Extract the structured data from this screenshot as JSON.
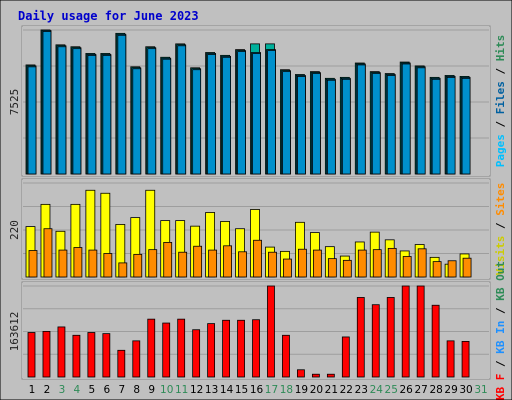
{
  "chart_data": {
    "type": "bar",
    "title": "Daily usage for June 2023",
    "categories": [
      "1",
      "2",
      "3",
      "4",
      "5",
      "6",
      "7",
      "8",
      "9",
      "10",
      "11",
      "12",
      "13",
      "14",
      "15",
      "16",
      "17",
      "18",
      "19",
      "20",
      "21",
      "22",
      "23",
      "24",
      "25",
      "26",
      "27",
      "28",
      "29",
      "30",
      "31"
    ],
    "weekend_categories": [
      "3",
      "4",
      "10",
      "11",
      "17",
      "18",
      "24",
      "25",
      "31"
    ],
    "colors": {
      "background": "#c0c0c0",
      "frame_fill": "#f8f8f8",
      "frame_border": "#888888",
      "grid": "#9e9e9e",
      "weekday_tick": "#000000",
      "weekend_tick": "#2e8b57",
      "hits": "#00b09b",
      "files": "#00bfff",
      "pages": "#0090cc",
      "visits": "#ffff00",
      "sites": "#ff8c00",
      "kbytes": "#ff0000",
      "kb_in": "#1e90ff",
      "kb_out": "#2e8b57"
    },
    "panels": [
      {
        "id": "hits-files-pages",
        "ylabel": "7525",
        "ymax": 7525,
        "side_legend": [
          {
            "text": "Pages",
            "color": "#00bfff"
          },
          {
            "text": " / ",
            "color": "#000000"
          },
          {
            "text": "Files",
            "color": "#0060a0"
          },
          {
            "text": " / ",
            "color": "#000000"
          },
          {
            "text": "Hits",
            "color": "#2e8b57"
          }
        ],
        "series": [
          {
            "name": "Hits",
            "color": "#00b09b",
            "values": [
              5700,
              7530,
              6750,
              6650,
              6300,
              6300,
              7350,
              5600,
              6650,
              6100,
              6800,
              5550,
              6350,
              6200,
              6500,
              6800,
              6800,
              5450,
              5200,
              5350,
              5000,
              5050,
              5800,
              5350,
              5250,
              5850,
              5650,
              5050,
              5150,
              5100,
              0
            ]
          },
          {
            "name": "Files",
            "color": "#00bfff",
            "values": [
              5650,
              7500,
              6700,
              6600,
              6250,
              6250,
              7300,
              5550,
              6600,
              6050,
              6750,
              5500,
              6300,
              6150,
              6450,
              6350,
              6500,
              5400,
              5150,
              5300,
              4950,
              5000,
              5750,
              5300,
              5200,
              5800,
              5600,
              5000,
              5100,
              5050,
              0
            ]
          },
          {
            "name": "Pages",
            "color": "#0090cc",
            "values": [
              5600,
              7450,
              6650,
              6550,
              6200,
              6200,
              7250,
              5500,
              6550,
              6000,
              6700,
              5450,
              6250,
              6100,
              6400,
              6300,
              6450,
              5350,
              5100,
              5250,
              4900,
              4950,
              5700,
              5250,
              5150,
              5750,
              5550,
              4950,
              5050,
              5000,
              0
            ]
          }
        ]
      },
      {
        "id": "visits-sites",
        "ylabel": "220",
        "ymax": 220,
        "side_legend": [
          {
            "text": "Visits",
            "color": "#cccc00"
          },
          {
            "text": " / ",
            "color": "#000000"
          },
          {
            "text": "Sites",
            "color": "#ff8c00"
          }
        ],
        "series": [
          {
            "name": "Visits",
            "color": "#ffff00",
            "values": [
              118,
              170,
              107,
              170,
              203,
              196,
              123,
              139,
              203,
              132,
              132,
              119,
              151,
              130,
              113,
              158,
              70,
              60,
              128,
              104,
              71,
              49,
              82,
              105,
              87,
              61,
              76,
              46,
              30,
              54,
              0
            ]
          },
          {
            "name": "Sites",
            "color": "#ff8c00",
            "values": [
              62,
              113,
              63,
              69,
              63,
              55,
              33,
              53,
              64,
              81,
              58,
              72,
              63,
              73,
              59,
              86,
              58,
              42,
              65,
              63,
              43,
              39,
              63,
              64,
              67,
              48,
              66,
              36,
              38,
              44,
              0
            ]
          }
        ]
      },
      {
        "id": "kbytes",
        "ylabel": "163612",
        "ymax": 163612,
        "side_legend": [
          {
            "text": "KB F",
            "color": "#ff0000"
          },
          {
            "text": " / ",
            "color": "#000000"
          },
          {
            "text": "KB In",
            "color": "#1e90ff"
          },
          {
            "text": " / ",
            "color": "#000000"
          },
          {
            "text": "KB Out",
            "color": "#2e8b57"
          }
        ],
        "series": [
          {
            "name": "KB F",
            "color": "#ff0000",
            "values": [
              80000,
              82000,
              90000,
              75000,
              80000,
              78000,
              48000,
              65000,
              104000,
              97000,
              104000,
              85000,
              96000,
              102000,
              102000,
              103000,
              163612,
              75000,
              13000,
              5000,
              5000,
              72000,
              143000,
              130000,
              143000,
              163612,
              163612,
              129000,
              65000,
              64000,
              0
            ]
          }
        ]
      }
    ]
  }
}
